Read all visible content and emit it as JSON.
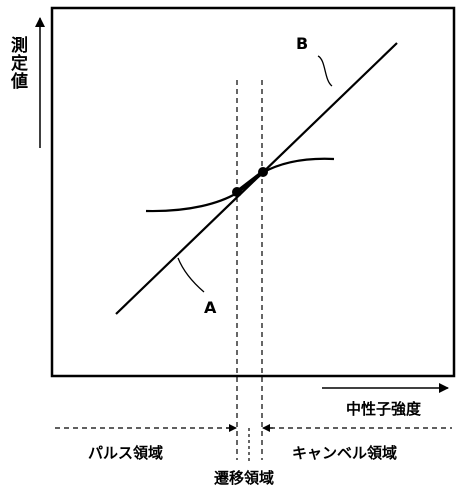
{
  "diagram": {
    "y_axis_label": "測定値",
    "x_axis_label": "中性子強度",
    "curve_a_label": "A",
    "curve_b_label": "B",
    "regions": {
      "pulse": "パルス領域",
      "transition": "遷移領域",
      "campbell": "キャンベル領域"
    }
  }
}
